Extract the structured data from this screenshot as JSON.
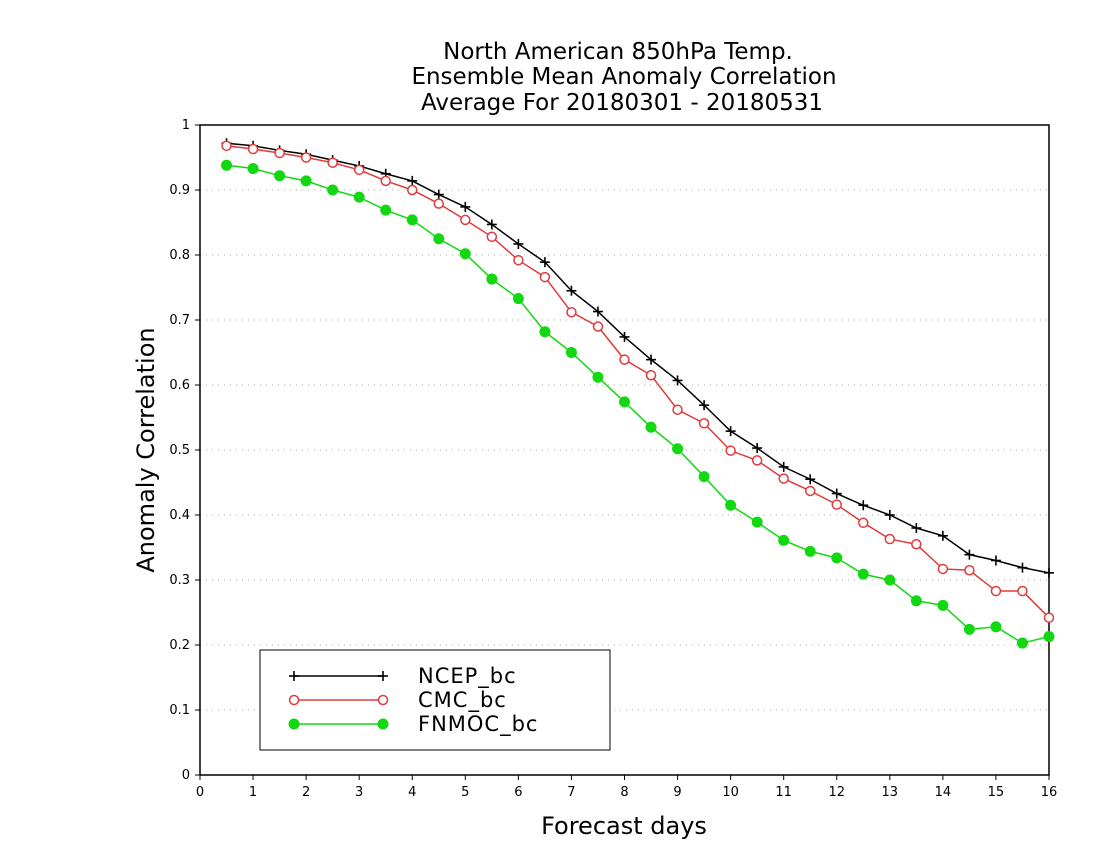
{
  "chart_data": {
    "type": "line",
    "title_lines": [
      "North American 850hPa Temp.",
      "Ensemble Mean Anomaly Correlation",
      "Average For 20180301 - 20180531"
    ],
    "xlabel": "Forecast days",
    "ylabel": "Anomaly Correlation",
    "xlim": [
      0,
      16
    ],
    "ylim": [
      0,
      1
    ],
    "x_ticks": [
      "0",
      "1",
      "2",
      "3",
      "4",
      "5",
      "6",
      "7",
      "8",
      "9",
      "10",
      "11",
      "12",
      "13",
      "14",
      "15",
      "16"
    ],
    "y_ticks": [
      "0",
      "0.1",
      "0.2",
      "0.3",
      "0.4",
      "0.5",
      "0.6",
      "0.7",
      "0.8",
      "0.9",
      "1"
    ],
    "grid": true,
    "legend_position": "bottom-left",
    "x": [
      0.5,
      1,
      1.5,
      2,
      2.5,
      3,
      3.5,
      4,
      4.5,
      5,
      5.5,
      6,
      6.5,
      7,
      7.5,
      8,
      8.5,
      9,
      9.5,
      10,
      10.5,
      11,
      11.5,
      12,
      12.5,
      13,
      13.5,
      14,
      14.5,
      15,
      15.5,
      16
    ],
    "series": [
      {
        "name": "NCEP_bc",
        "color": "#000000",
        "marker": "plus",
        "values": [
          0.972,
          0.968,
          0.961,
          0.955,
          0.946,
          0.937,
          0.925,
          0.914,
          0.893,
          0.874,
          0.847,
          0.817,
          0.789,
          0.745,
          0.713,
          0.674,
          0.639,
          0.607,
          0.569,
          0.529,
          0.503,
          0.474,
          0.455,
          0.433,
          0.415,
          0.4,
          0.38,
          0.368,
          0.339,
          0.33,
          0.319,
          0.311
        ]
      },
      {
        "name": "CMC_bc",
        "color": "#e23a3a",
        "marker": "open-circle",
        "values": [
          0.968,
          0.963,
          0.957,
          0.95,
          0.942,
          0.931,
          0.914,
          0.9,
          0.879,
          0.854,
          0.828,
          0.792,
          0.766,
          0.712,
          0.69,
          0.639,
          0.615,
          0.562,
          0.541,
          0.499,
          0.484,
          0.456,
          0.437,
          0.416,
          0.388,
          0.363,
          0.355,
          0.317,
          0.315,
          0.283,
          0.283,
          0.242
        ]
      },
      {
        "name": "FNMOC_bc",
        "color": "#11d811",
        "marker": "filled-circle",
        "values": [
          0.938,
          0.933,
          0.922,
          0.914,
          0.9,
          0.889,
          0.869,
          0.854,
          0.825,
          0.802,
          0.763,
          0.733,
          0.682,
          0.65,
          0.612,
          0.574,
          0.535,
          0.502,
          0.459,
          0.415,
          0.389,
          0.361,
          0.344,
          0.334,
          0.309,
          0.3,
          0.268,
          0.261,
          0.224,
          0.228,
          0.203,
          0.213
        ]
      }
    ]
  }
}
